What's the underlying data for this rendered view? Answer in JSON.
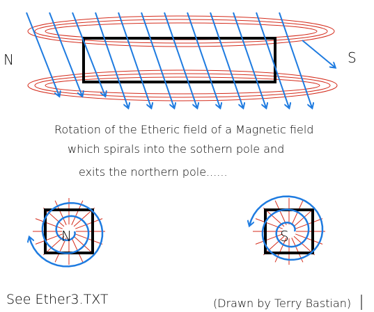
{
  "labels": {
    "north": "N",
    "south": "S"
  },
  "caption": [
    "Rotation of the Etheric field of a Magnetic field",
    "which spirals into the sothern pole and",
    "exits the northern pole......"
  ],
  "poles": {
    "north": "N",
    "south": "S"
  },
  "footer": {
    "reference": "See Ether3.TXT",
    "credit": "(Drawn by Terry Bastian)"
  }
}
